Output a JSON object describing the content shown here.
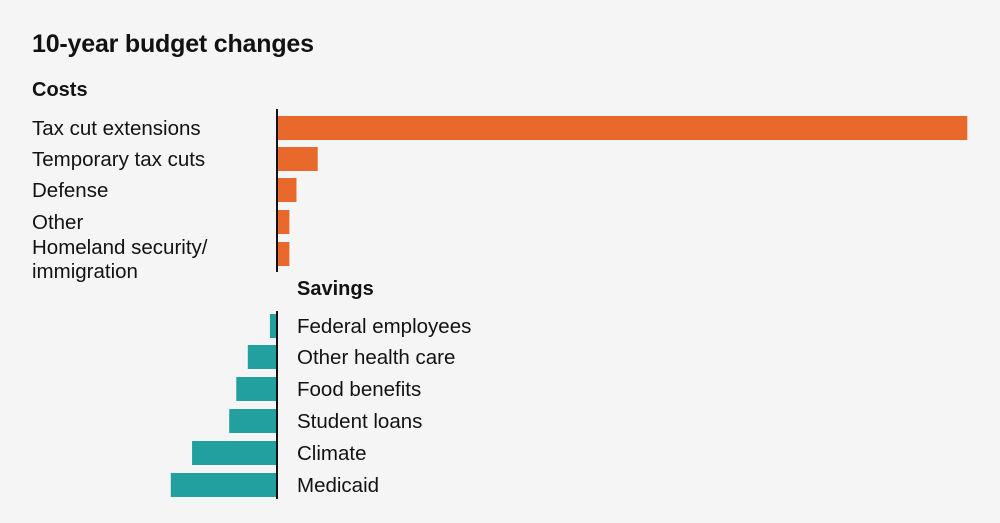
{
  "chart_data": {
    "type": "bar",
    "title": "10-year budget changes",
    "xlabel": "",
    "ylabel": "",
    "costs": {
      "label": "Costs",
      "color": "#e8692b",
      "categories": [
        "Tax cut extensions",
        "Temporary tax cuts",
        "Defense",
        "Other",
        "Homeland security/ immigration"
      ],
      "values": [
        3.9,
        0.23,
        0.11,
        0.07,
        0.07
      ]
    },
    "savings": {
      "label": "Savings",
      "color": "#22a0a0",
      "categories": [
        "Federal employees",
        "Other health care",
        "Food benefits",
        "Student loans",
        "Climate",
        "Medicaid"
      ],
      "values": [
        -0.04,
        -0.165,
        -0.23,
        -0.27,
        -0.48,
        -0.6
      ]
    }
  }
}
